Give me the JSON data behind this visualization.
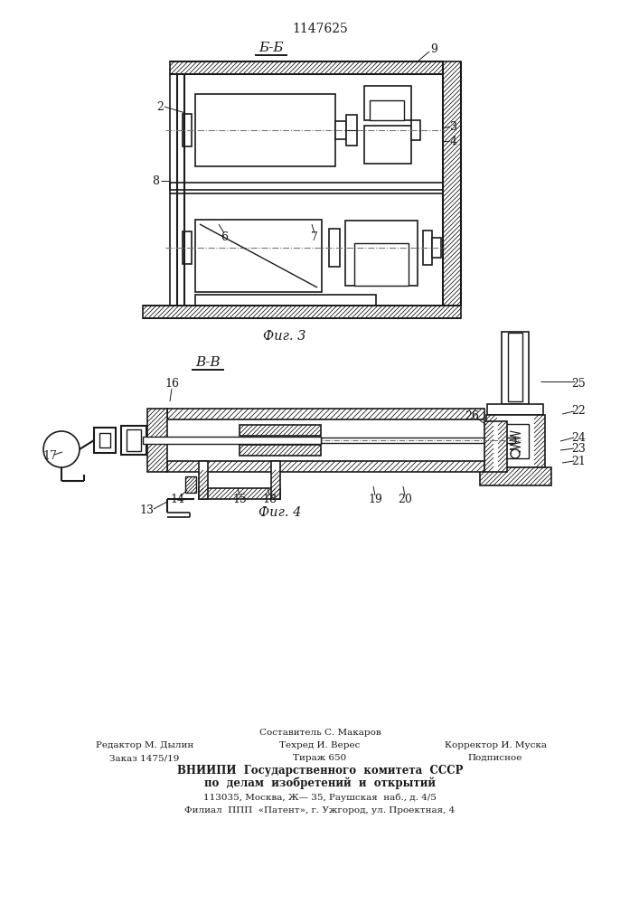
{
  "patent_number": "1147625",
  "bg": "#ffffff",
  "lc": "#1a1a1a",
  "fig3_label": "Б-Б",
  "fig3_caption": "Фиг. 3",
  "fig4_label": "В-В",
  "fig4_caption": "Фиг. 4",
  "footer_sestavitel": "Составитель С. Макаров",
  "footer_redaktor": "Редактор М. Дылин",
  "footer_tehred": "Техред И. Верес",
  "footer_korrektor": "Корректор И. Муска",
  "footer_zakaz": "Заказ 1475/19",
  "footer_tirazh": "Тираж 650",
  "footer_podpisnoe": "Подписное",
  "footer_vniiipi": "ВНИИПИ  Государственного  комитета  СССР",
  "footer_po": "по  делам  изобретений  и  открытий",
  "footer_addr": "113035, Москва, Ж— 35, Раушская  наб., д. 4/5",
  "footer_filial": "Филиал  ППП  «Патент», г. Ужгород, ул. Проектная, 4"
}
